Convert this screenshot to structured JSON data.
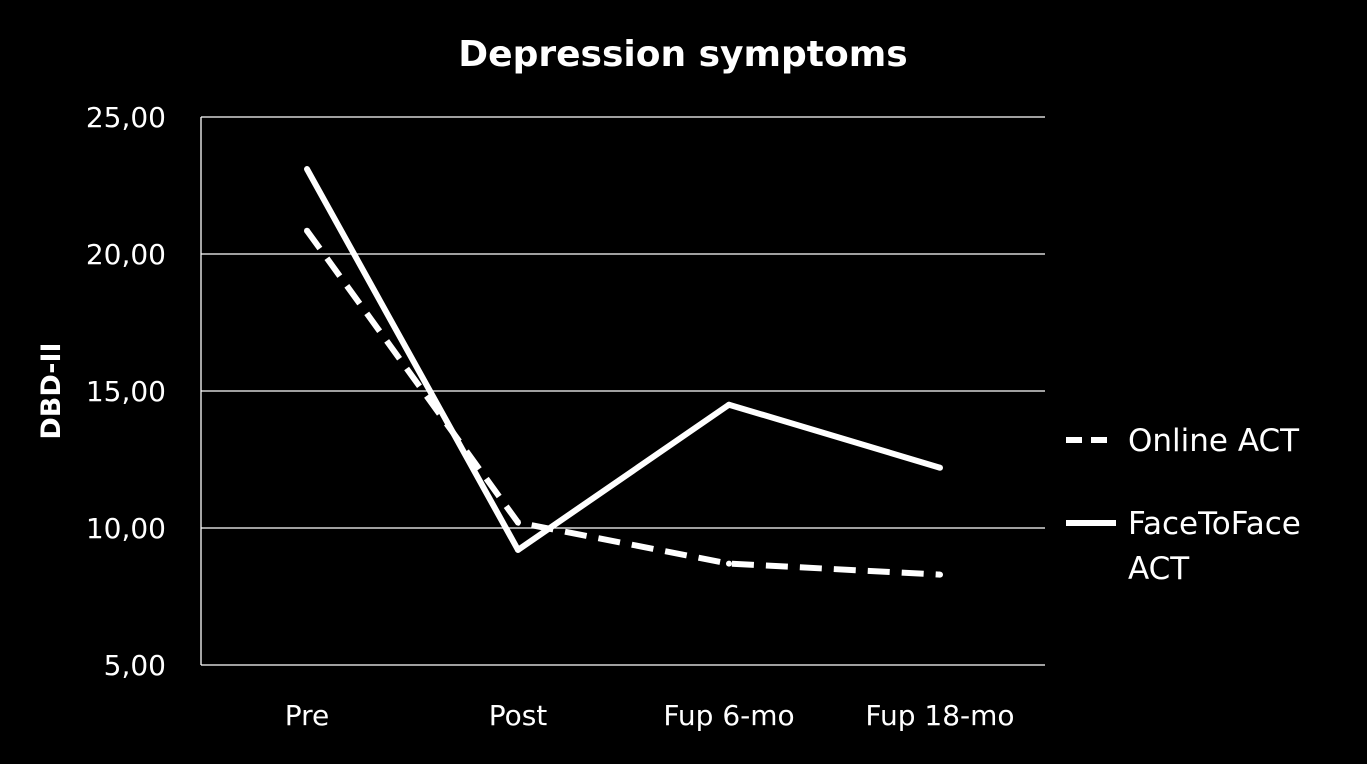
{
  "chart_data": {
    "type": "line",
    "title": "Depression symptoms",
    "xlabel": "",
    "ylabel": "DBD-II",
    "categories": [
      "Pre",
      "Post",
      "Fup 6-mo",
      "Fup 18-mo"
    ],
    "ylim": [
      5,
      25
    ],
    "yticks": [
      5,
      10,
      15,
      20,
      25
    ],
    "ytick_labels": [
      "5,00",
      "10,00",
      "15,00",
      "20,00",
      "25,00"
    ],
    "grid": "horizontal",
    "legend_position": "right",
    "line_color": "#ffffff",
    "background": "#000000",
    "series": [
      {
        "name": "Online ACT",
        "values": [
          20.85,
          10.2,
          8.7,
          8.3
        ],
        "style": "dashed"
      },
      {
        "name": "FaceToFace ACT",
        "values": [
          23.1,
          9.2,
          14.5,
          12.2
        ],
        "style": "solid"
      }
    ]
  }
}
